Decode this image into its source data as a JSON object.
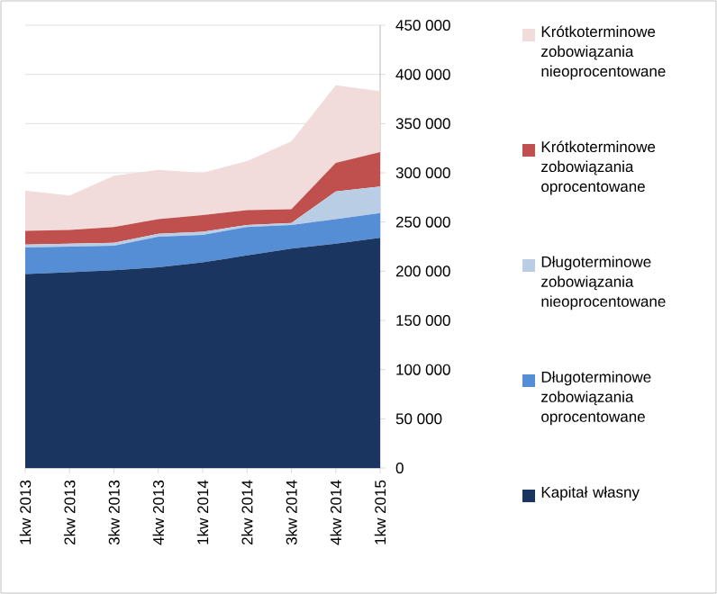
{
  "chart_data": {
    "type": "area",
    "stacked": true,
    "categories": [
      "1kw 2013",
      "2kw 2013",
      "3kw 2013",
      "4kw 2013",
      "1kw 2014",
      "2kw 2014",
      "3kw 2014",
      "4kw 2014",
      "1kw 2015"
    ],
    "series": [
      {
        "name": "Kapitał własny",
        "color": "#1a3660",
        "values": [
          197000,
          199000,
          201000,
          204000,
          209000,
          216000,
          223000,
          228000,
          234000
        ]
      },
      {
        "name": "Długoterminowe zobowiązania oprocentowane",
        "color": "#558ed5",
        "values": [
          27000,
          26000,
          25000,
          31000,
          28000,
          29000,
          24000,
          25000,
          25000
        ]
      },
      {
        "name": "Długoterminowe zobowiązania nieoprocentowane",
        "color": "#b9cde5",
        "values": [
          3000,
          3000,
          3000,
          3000,
          3000,
          2000,
          2000,
          28000,
          27000
        ]
      },
      {
        "name": "Krótkoterminowe zobowiązania oprocentowane",
        "color": "#c0504d",
        "values": [
          14000,
          14000,
          16000,
          15000,
          17000,
          15000,
          14000,
          29000,
          35000
        ]
      },
      {
        "name": "Krótkoterminowe zobowiązania nieoprocentowane",
        "color": "#f2dcdb",
        "values": [
          41000,
          35000,
          52000,
          50000,
          43000,
          50000,
          69000,
          79000,
          62000
        ]
      }
    ],
    "ylim": [
      0,
      450000
    ],
    "yticks": [
      0,
      {
        "value": 50000,
        "label": "50 000"
      },
      {
        "value": 100000,
        "label": "100 000"
      },
      {
        "value": 150000,
        "label": "150 000"
      },
      {
        "value": 200000,
        "label": "200 000"
      },
      {
        "value": 250000,
        "label": "250 000"
      },
      {
        "value": 300000,
        "label": "300 000"
      },
      {
        "value": 350000,
        "label": "350 000"
      },
      {
        "value": 400000,
        "label": "400 000"
      },
      {
        "value": 450000,
        "label": "450 000"
      }
    ],
    "grid": "y",
    "legend": "right"
  }
}
